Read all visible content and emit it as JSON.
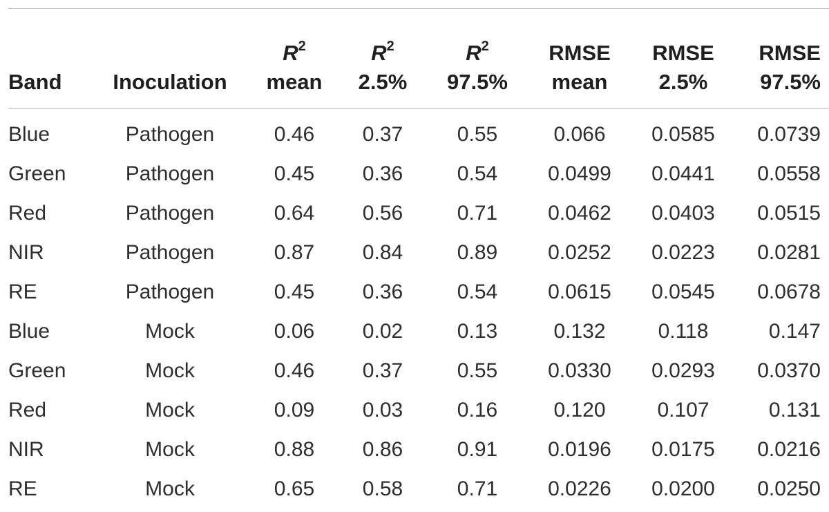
{
  "table": {
    "headers": [
      {
        "line1": "",
        "line2": "Band"
      },
      {
        "line1": "",
        "line2": "Inoculation"
      },
      {
        "line1_var": "R",
        "line1_sup": "2",
        "line2": "mean"
      },
      {
        "line1_var": "R",
        "line1_sup": "2",
        "line2": "2.5%"
      },
      {
        "line1_var": "R",
        "line1_sup": "2",
        "line2": "97.5%"
      },
      {
        "line1": "RMSE",
        "line2": "mean"
      },
      {
        "line1": "RMSE",
        "line2": "2.5%"
      },
      {
        "line1": "RMSE",
        "line2": "97.5%"
      }
    ],
    "rows": [
      [
        "Blue",
        "Pathogen",
        "0.46",
        "0.37",
        "0.55",
        "0.066",
        "0.0585",
        "0.0739"
      ],
      [
        "Green",
        "Pathogen",
        "0.45",
        "0.36",
        "0.54",
        "0.0499",
        "0.0441",
        "0.0558"
      ],
      [
        "Red",
        "Pathogen",
        "0.64",
        "0.56",
        "0.71",
        "0.0462",
        "0.0403",
        "0.0515"
      ],
      [
        "NIR",
        "Pathogen",
        "0.87",
        "0.84",
        "0.89",
        "0.0252",
        "0.0223",
        "0.0281"
      ],
      [
        "RE",
        "Pathogen",
        "0.45",
        "0.36",
        "0.54",
        "0.0615",
        "0.0545",
        "0.0678"
      ],
      [
        "Blue",
        "Mock",
        "0.06",
        "0.02",
        "0.13",
        "0.132",
        "0.118",
        "0.147"
      ],
      [
        "Green",
        "Mock",
        "0.46",
        "0.37",
        "0.55",
        "0.0330",
        "0.0293",
        "0.0370"
      ],
      [
        "Red",
        "Mock",
        "0.09",
        "0.03",
        "0.16",
        "0.120",
        "0.107",
        "0.131"
      ],
      [
        "NIR",
        "Mock",
        "0.88",
        "0.86",
        "0.91",
        "0.0196",
        "0.0175",
        "0.0216"
      ],
      [
        "RE",
        "Mock",
        "0.65",
        "0.58",
        "0.71",
        "0.0226",
        "0.0200",
        "0.0250"
      ]
    ]
  }
}
